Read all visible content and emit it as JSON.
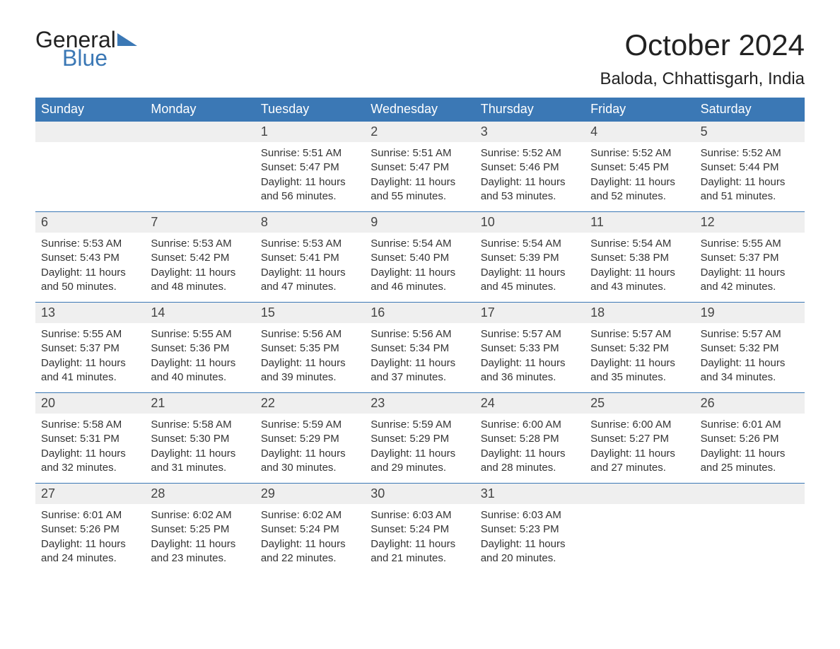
{
  "logo": {
    "text1": "General",
    "text2": "Blue"
  },
  "title": "October 2024",
  "location": "Baloda, Chhattisgarh, India",
  "styling": {
    "brand_color": "#3b78b5",
    "header_bg": "#3b78b5",
    "header_text_color": "#ffffff",
    "daynum_bg": "#efefef",
    "body_text_color": "#333333",
    "page_bg": "#ffffff",
    "title_fontsize": 42,
    "location_fontsize": 24,
    "dayheader_fontsize": 18,
    "content_fontsize": 15,
    "columns": 7,
    "cell_min_height": 128
  },
  "day_headers": [
    "Sunday",
    "Monday",
    "Tuesday",
    "Wednesday",
    "Thursday",
    "Friday",
    "Saturday"
  ],
  "cells": [
    {
      "empty": true
    },
    {
      "empty": true
    },
    {
      "n": "1",
      "sr": "Sunrise: 5:51 AM",
      "ss": "Sunset: 5:47 PM",
      "dl": "Daylight: 11 hours and 56 minutes."
    },
    {
      "n": "2",
      "sr": "Sunrise: 5:51 AM",
      "ss": "Sunset: 5:47 PM",
      "dl": "Daylight: 11 hours and 55 minutes."
    },
    {
      "n": "3",
      "sr": "Sunrise: 5:52 AM",
      "ss": "Sunset: 5:46 PM",
      "dl": "Daylight: 11 hours and 53 minutes."
    },
    {
      "n": "4",
      "sr": "Sunrise: 5:52 AM",
      "ss": "Sunset: 5:45 PM",
      "dl": "Daylight: 11 hours and 52 minutes."
    },
    {
      "n": "5",
      "sr": "Sunrise: 5:52 AM",
      "ss": "Sunset: 5:44 PM",
      "dl": "Daylight: 11 hours and 51 minutes."
    },
    {
      "n": "6",
      "sr": "Sunrise: 5:53 AM",
      "ss": "Sunset: 5:43 PM",
      "dl": "Daylight: 11 hours and 50 minutes."
    },
    {
      "n": "7",
      "sr": "Sunrise: 5:53 AM",
      "ss": "Sunset: 5:42 PM",
      "dl": "Daylight: 11 hours and 48 minutes."
    },
    {
      "n": "8",
      "sr": "Sunrise: 5:53 AM",
      "ss": "Sunset: 5:41 PM",
      "dl": "Daylight: 11 hours and 47 minutes."
    },
    {
      "n": "9",
      "sr": "Sunrise: 5:54 AM",
      "ss": "Sunset: 5:40 PM",
      "dl": "Daylight: 11 hours and 46 minutes."
    },
    {
      "n": "10",
      "sr": "Sunrise: 5:54 AM",
      "ss": "Sunset: 5:39 PM",
      "dl": "Daylight: 11 hours and 45 minutes."
    },
    {
      "n": "11",
      "sr": "Sunrise: 5:54 AM",
      "ss": "Sunset: 5:38 PM",
      "dl": "Daylight: 11 hours and 43 minutes."
    },
    {
      "n": "12",
      "sr": "Sunrise: 5:55 AM",
      "ss": "Sunset: 5:37 PM",
      "dl": "Daylight: 11 hours and 42 minutes."
    },
    {
      "n": "13",
      "sr": "Sunrise: 5:55 AM",
      "ss": "Sunset: 5:37 PM",
      "dl": "Daylight: 11 hours and 41 minutes."
    },
    {
      "n": "14",
      "sr": "Sunrise: 5:55 AM",
      "ss": "Sunset: 5:36 PM",
      "dl": "Daylight: 11 hours and 40 minutes."
    },
    {
      "n": "15",
      "sr": "Sunrise: 5:56 AM",
      "ss": "Sunset: 5:35 PM",
      "dl": "Daylight: 11 hours and 39 minutes."
    },
    {
      "n": "16",
      "sr": "Sunrise: 5:56 AM",
      "ss": "Sunset: 5:34 PM",
      "dl": "Daylight: 11 hours and 37 minutes."
    },
    {
      "n": "17",
      "sr": "Sunrise: 5:57 AM",
      "ss": "Sunset: 5:33 PM",
      "dl": "Daylight: 11 hours and 36 minutes."
    },
    {
      "n": "18",
      "sr": "Sunrise: 5:57 AM",
      "ss": "Sunset: 5:32 PM",
      "dl": "Daylight: 11 hours and 35 minutes."
    },
    {
      "n": "19",
      "sr": "Sunrise: 5:57 AM",
      "ss": "Sunset: 5:32 PM",
      "dl": "Daylight: 11 hours and 34 minutes."
    },
    {
      "n": "20",
      "sr": "Sunrise: 5:58 AM",
      "ss": "Sunset: 5:31 PM",
      "dl": "Daylight: 11 hours and 32 minutes."
    },
    {
      "n": "21",
      "sr": "Sunrise: 5:58 AM",
      "ss": "Sunset: 5:30 PM",
      "dl": "Daylight: 11 hours and 31 minutes."
    },
    {
      "n": "22",
      "sr": "Sunrise: 5:59 AM",
      "ss": "Sunset: 5:29 PM",
      "dl": "Daylight: 11 hours and 30 minutes."
    },
    {
      "n": "23",
      "sr": "Sunrise: 5:59 AM",
      "ss": "Sunset: 5:29 PM",
      "dl": "Daylight: 11 hours and 29 minutes."
    },
    {
      "n": "24",
      "sr": "Sunrise: 6:00 AM",
      "ss": "Sunset: 5:28 PM",
      "dl": "Daylight: 11 hours and 28 minutes."
    },
    {
      "n": "25",
      "sr": "Sunrise: 6:00 AM",
      "ss": "Sunset: 5:27 PM",
      "dl": "Daylight: 11 hours and 27 minutes."
    },
    {
      "n": "26",
      "sr": "Sunrise: 6:01 AM",
      "ss": "Sunset: 5:26 PM",
      "dl": "Daylight: 11 hours and 25 minutes."
    },
    {
      "n": "27",
      "sr": "Sunrise: 6:01 AM",
      "ss": "Sunset: 5:26 PM",
      "dl": "Daylight: 11 hours and 24 minutes."
    },
    {
      "n": "28",
      "sr": "Sunrise: 6:02 AM",
      "ss": "Sunset: 5:25 PM",
      "dl": "Daylight: 11 hours and 23 minutes."
    },
    {
      "n": "29",
      "sr": "Sunrise: 6:02 AM",
      "ss": "Sunset: 5:24 PM",
      "dl": "Daylight: 11 hours and 22 minutes."
    },
    {
      "n": "30",
      "sr": "Sunrise: 6:03 AM",
      "ss": "Sunset: 5:24 PM",
      "dl": "Daylight: 11 hours and 21 minutes."
    },
    {
      "n": "31",
      "sr": "Sunrise: 6:03 AM",
      "ss": "Sunset: 5:23 PM",
      "dl": "Daylight: 11 hours and 20 minutes."
    },
    {
      "empty": true
    },
    {
      "empty": true
    }
  ]
}
